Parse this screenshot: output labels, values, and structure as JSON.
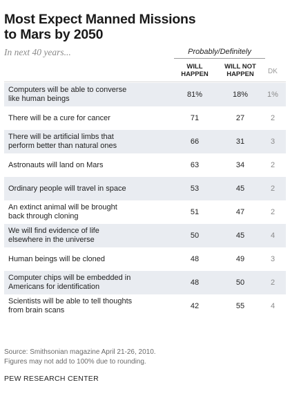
{
  "title_line1": "Most Expect Manned Missions",
  "title_line2": "to Mars by 2050",
  "subtitle": "In next 40 years...",
  "group_header": "Probably/Definitely",
  "columns": {
    "will_line1": "WILL",
    "will_line2": "HAPPEN",
    "wont_line1": "WILL NOT",
    "wont_line2": "HAPPEN",
    "dk": "DK"
  },
  "chart_data": {
    "type": "table",
    "columns": [
      "Will happen",
      "Will not happen",
      "DK"
    ],
    "rows": [
      {
        "label_lines": [
          "Computers will be able to converse",
          "like human beings"
        ],
        "will": "81%",
        "wont": "18%",
        "dk": "1%"
      },
      {
        "label_lines": [
          "There will be a cure for cancer"
        ],
        "will": "71",
        "wont": "27",
        "dk": "2"
      },
      {
        "label_lines": [
          "There will be artificial limbs that",
          "perform better than natural ones"
        ],
        "will": "66",
        "wont": "31",
        "dk": "3"
      },
      {
        "label_lines": [
          "Astronauts will land on Mars"
        ],
        "will": "63",
        "wont": "34",
        "dk": "2"
      },
      {
        "label_lines": [
          "Ordinary people will travel in space"
        ],
        "will": "53",
        "wont": "45",
        "dk": "2"
      },
      {
        "label_lines": [
          "An extinct animal will be brought",
          "back through cloning"
        ],
        "will": "51",
        "wont": "47",
        "dk": "2"
      },
      {
        "label_lines": [
          "We will find evidence of life",
          "elsewhere in the universe"
        ],
        "will": "50",
        "wont": "45",
        "dk": "4"
      },
      {
        "label_lines": [
          "Human beings will be cloned"
        ],
        "will": "48",
        "wont": "49",
        "dk": "3"
      },
      {
        "label_lines": [
          "Computer chips will be embedded in",
          "Americans for identification"
        ],
        "will": "48",
        "wont": "50",
        "dk": "2"
      },
      {
        "label_lines": [
          "Scientists will be able to tell thoughts",
          "from brain scans"
        ],
        "will": "42",
        "wont": "55",
        "dk": "4"
      }
    ]
  },
  "source_line1": "Source: Smithsonian magazine April 21-26, 2010.",
  "source_line2": "Figures may not add to 100% due to rounding.",
  "brand": "PEW RESEARCH CENTER",
  "colors": {
    "shade": "#e9ecf1",
    "text": "#222222",
    "muted": "#8a8a8a"
  }
}
